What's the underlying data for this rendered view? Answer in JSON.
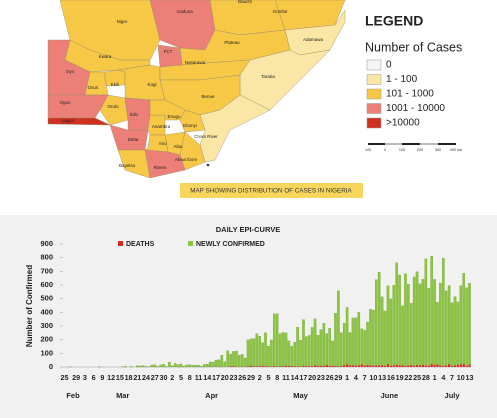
{
  "map": {
    "caption": "MAP SHOWING DISTRIBUTION OF CASES IN NIGERIA",
    "legend_title": "LEGEND",
    "legend_subtitle": "Number of Cases",
    "legend": [
      {
        "label": "0",
        "color": "#f4f4f4"
      },
      {
        "label": "1 - 100",
        "color": "#fbe7a5"
      },
      {
        "label": "101 - 1000",
        "color": "#f6c845"
      },
      {
        "label": "1001 - 10000",
        "color": "#ec8078"
      },
      {
        "label": ">10000",
        "color": "#d0301f"
      }
    ],
    "scale_labels": [
      "100",
      "0",
      "100",
      "200",
      "300",
      "400 km"
    ],
    "states": [
      {
        "name": "Niger",
        "color": "#f6c845"
      },
      {
        "name": "Kaduna",
        "color": "#ec8078"
      },
      {
        "name": "Bauchi",
        "color": "#f6c845"
      },
      {
        "name": "Gombe",
        "color": "#f6c845"
      },
      {
        "name": "Adamawa",
        "color": "#fbe7a5"
      },
      {
        "name": "Plateau",
        "color": "#f6c845"
      },
      {
        "name": "FCT",
        "color": "#ec8078"
      },
      {
        "name": "Kwara",
        "color": "#f6c845"
      },
      {
        "name": "Oyo",
        "color": "#ec8078"
      },
      {
        "name": "Osun",
        "color": "#f6c845"
      },
      {
        "name": "Ekiti",
        "color": "#f6c845"
      },
      {
        "name": "Kogi",
        "color": "#f6c845"
      },
      {
        "name": "Nasarawa",
        "color": "#f6c845"
      },
      {
        "name": "Taraba",
        "color": "#fbe7a5"
      },
      {
        "name": "Benue",
        "color": "#f6c845"
      },
      {
        "name": "Ondo",
        "color": "#f6c845"
      },
      {
        "name": "Ogun",
        "color": "#ec8078"
      },
      {
        "name": "Lagos",
        "color": "#d0301f"
      },
      {
        "name": "Edo",
        "color": "#ec8078"
      },
      {
        "name": "Delta",
        "color": "#ec8078"
      },
      {
        "name": "Anambra",
        "color": "#f6c845"
      },
      {
        "name": "Enugu",
        "color": "#f6c845"
      },
      {
        "name": "Ebonyi",
        "color": "#f6c845"
      },
      {
        "name": "Imo",
        "color": "#f6c845"
      },
      {
        "name": "Abia",
        "color": "#f6c845"
      },
      {
        "name": "Cross River",
        "color": "#fbe7a5"
      },
      {
        "name": "Akwa Ibom",
        "color": "#f6c845"
      },
      {
        "name": "Rivers",
        "color": "#ec8078"
      },
      {
        "name": "Bayelsa",
        "color": "#f6c845"
      }
    ]
  },
  "chart_data": {
    "type": "bar",
    "stacked": true,
    "title": "DAILY EPI-CURVE",
    "y_label": "Number of Confirmed",
    "ylim": [
      0,
      900
    ],
    "yticks": [
      0,
      100,
      200,
      300,
      400,
      500,
      600,
      700,
      800,
      900
    ],
    "months": [
      "Feb",
      "Mar",
      "Apr",
      "May",
      "June",
      "July"
    ],
    "categories": [
      "25",
      null,
      null,
      null,
      "29",
      null,
      null,
      "3",
      null,
      null,
      "6",
      null,
      null,
      "9",
      null,
      null,
      "12",
      null,
      null,
      "15",
      null,
      null,
      "18",
      null,
      null,
      "21",
      null,
      null,
      "24",
      null,
      null,
      "27",
      null,
      null,
      "30",
      null,
      null,
      "2",
      null,
      null,
      "5",
      null,
      null,
      "8",
      null,
      null,
      "11",
      null,
      null,
      "14",
      null,
      null,
      "17",
      null,
      null,
      "20",
      null,
      null,
      "23",
      null,
      null,
      "26",
      null,
      null,
      "29",
      null,
      null,
      "2",
      null,
      null,
      "5",
      null,
      null,
      "8",
      null,
      null,
      "11",
      null,
      null,
      "14",
      null,
      null,
      "17",
      null,
      null,
      "20",
      null,
      null,
      "23",
      null,
      null,
      "26",
      null,
      null,
      "29",
      null,
      null,
      "1",
      null,
      null,
      "4",
      null,
      null,
      "7",
      null,
      null,
      "10",
      null,
      null,
      "13",
      null,
      null,
      "16",
      null,
      null,
      "19",
      null,
      null,
      "22",
      null,
      null,
      "25",
      null,
      null,
      "28",
      null,
      null,
      "1",
      null,
      null,
      "4",
      null,
      null,
      "7",
      null,
      null,
      "10",
      null,
      null,
      "13"
    ],
    "series": [
      {
        "name": "DEATHS",
        "color": "#d42a20",
        "values": [
          0,
          0,
          0,
          0,
          0,
          0,
          0,
          0,
          0,
          0,
          0,
          0,
          0,
          0,
          0,
          0,
          0,
          0,
          0,
          0,
          0,
          0,
          0,
          0,
          0,
          0,
          0,
          1,
          0,
          0,
          1,
          0,
          0,
          1,
          0,
          0,
          1,
          0,
          1,
          0,
          0,
          1,
          0,
          1,
          2,
          0,
          1,
          1,
          0,
          1,
          3,
          1,
          2,
          2,
          1,
          1,
          2,
          4,
          6,
          3,
          0,
          3,
          2,
          4,
          10,
          4,
          5,
          6,
          9,
          5,
          5,
          3,
          9,
          3,
          4,
          5,
          8,
          7,
          7,
          5,
          4,
          3,
          9,
          7,
          5,
          6,
          13,
          7,
          8,
          7,
          15,
          7,
          9,
          7,
          4,
          6,
          14,
          20,
          11,
          11,
          10,
          11,
          19,
          10,
          14,
          13,
          8,
          12,
          13,
          12,
          7,
          21,
          9,
          12,
          17,
          12,
          11,
          7,
          12,
          14,
          10,
          14,
          13,
          16,
          12,
          10,
          22,
          15,
          20,
          11,
          7,
          13,
          21,
          7,
          12,
          16,
          20,
          22,
          9,
          18
        ]
      },
      {
        "name": "NEWLY CONFIRMED",
        "color": "#8cc63e",
        "values": [
          0,
          0,
          1,
          0,
          0,
          0,
          0,
          0,
          0,
          0,
          0,
          0,
          1,
          0,
          0,
          0,
          0,
          0,
          0,
          0,
          1,
          5,
          0,
          4,
          0,
          10,
          8,
          10,
          4,
          2,
          14,
          16,
          5,
          14,
          20,
          4,
          35,
          10,
          25,
          18,
          22,
          6,
          16,
          16,
          12,
          13,
          13,
          5,
          20,
          20,
          34,
          35,
          49,
          51,
          86,
          38,
          117,
          91,
          108,
          114,
          87,
          91,
          64,
          195,
          196,
          204,
          238,
          220,
          170,
          245,
          148,
          195,
          381,
          386,
          239,
          248,
          242,
          184,
          146,
          176,
          288,
          193,
          338,
          216,
          226,
          284,
          339,
          226,
          265,
          313,
          229,
          276,
          182,
          387,
          553,
          245,
          307,
          416,
          241,
          348,
          350,
          389,
          260,
          260,
          315,
          409,
          409,
          627,
          681,
          501,
          403,
          573,
          490,
          587,
          745,
          661,
          436,
          675,
          594,
          452,
          649,
          684,
          596,
          626,
          779,
          566,
          790,
          626,
          454,
          603,
          790,
          544,
          575,
          463,
          503,
          460,
          575,
          664,
          571,
          595
        ]
      }
    ]
  }
}
